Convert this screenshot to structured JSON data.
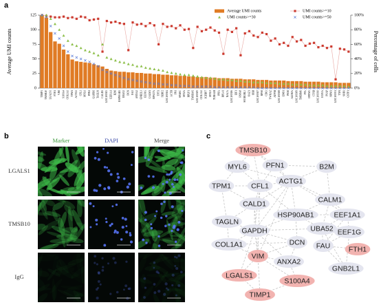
{
  "panel_labels": [
    "a",
    "b",
    "c"
  ],
  "chart_data": {
    "type": "bar",
    "ylabel": "Average UMI counts",
    "y2label": "Percentage of cells",
    "categories": [
      "TIMP1",
      "TMSB10",
      "LGALS1",
      "FTH1",
      "VIM",
      "S100A4",
      "COL1A1",
      "TPM1",
      "ACTG1",
      "CFL1",
      "MYL6",
      "PFN1",
      "GAPDH",
      "TAGLN",
      "CALD1",
      "LOC100383",
      "EEF1A1",
      "B2M",
      "HSP90AB1",
      "UBA52",
      "DCN",
      "FAU",
      "ANXA2",
      "GNB2L1",
      "EEF1G",
      "CALM1",
      "RPS27A",
      "TPT1",
      "SERF2",
      "LOC100384",
      "ACTB",
      "FN1",
      "SPARC",
      "MT2A",
      "RPLP1",
      "TMSB4X",
      "LOC100385",
      "COL3A1",
      "IGFBP7",
      "MYL9",
      "TUBA1B",
      "PPIA",
      "RPL41",
      "NACA",
      "LOC100386",
      "EIF1",
      "HSPA8",
      "SH3BGRL3",
      "OAZ1",
      "UBB",
      "LOC100387",
      "RPS8",
      "CD63",
      "YWHAZ",
      "ATP5B",
      "LOC100388",
      "ENO1",
      "PKM",
      "ALDOA",
      "LOC100389",
      "TMBIM6",
      "FTL",
      "IFITM3",
      "CTSB",
      "LOC100390",
      "H3F3A",
      "PSAP",
      "NPM1",
      "LOC100391",
      "TXN",
      "SOD1",
      "GSTP1"
    ],
    "series": [
      {
        "name": "Average UMI counts",
        "color": "#e07b24",
        "kind": "bar",
        "values": [
          125,
          121,
          96,
          80,
          76,
          66,
          58,
          49,
          46,
          45,
          44,
          43,
          41,
          39,
          37,
          33,
          30,
          29,
          28,
          28,
          27,
          27,
          26,
          26,
          25,
          25,
          24,
          24,
          23,
          23,
          22,
          22,
          21,
          21,
          20,
          20,
          19,
          19,
          19,
          18,
          18,
          17,
          17,
          17,
          16,
          16,
          16,
          15,
          15,
          15,
          14,
          14,
          14,
          13,
          13,
          13,
          13,
          12,
          12,
          12,
          12,
          11,
          11,
          11,
          11,
          10,
          10,
          10,
          10,
          9,
          9,
          9
        ]
      },
      {
        "name": "UMI counts>=10",
        "color": "#cc3b30",
        "kind": "line",
        "marker": "square",
        "axis": "y2",
        "values": [
          100,
          99,
          98,
          97,
          97,
          98,
          96,
          97,
          95,
          98,
          97,
          93,
          94,
          95,
          50,
          92,
          90,
          91,
          89,
          88,
          52,
          90,
          87,
          88,
          85,
          89,
          86,
          60,
          88,
          84,
          85,
          82,
          86,
          80,
          81,
          55,
          84,
          78,
          80,
          83,
          79,
          76,
          47,
          80,
          77,
          82,
          45,
          75,
          78,
          72,
          70,
          76,
          74,
          65,
          68,
          60,
          62,
          58,
          70,
          64,
          66,
          58,
          61,
          62,
          56,
          58,
          55,
          57,
          12,
          54,
          53,
          50
        ]
      },
      {
        "name": "UMI counts>=30",
        "color": "#8dbf4a",
        "kind": "points",
        "marker": "triangle",
        "axis": "y2",
        "values": [
          100,
          100,
          95,
          88,
          80,
          72,
          65,
          60,
          58,
          55,
          52,
          50,
          48,
          45,
          60,
          42,
          40,
          38,
          36,
          35,
          33,
          32,
          30,
          30,
          28,
          27,
          26,
          25,
          24,
          22,
          21,
          20,
          19,
          18,
          18,
          17,
          16,
          15,
          14,
          14,
          13,
          12,
          12,
          11,
          11,
          10,
          10,
          9,
          9,
          8,
          8,
          8,
          7,
          7,
          7,
          6,
          6,
          6,
          5,
          5,
          5,
          5,
          4,
          4,
          4,
          4,
          3,
          3,
          3,
          3,
          3,
          2
        ]
      },
      {
        "name": "UMI counts>=50",
        "color": "#5b7bd5",
        "kind": "points",
        "marker": "x",
        "axis": "y2",
        "values": [
          100,
          97,
          85,
          75,
          68,
          58,
          50,
          44,
          42,
          40,
          38,
          36,
          33,
          30,
          25,
          22,
          20,
          18,
          16,
          14,
          12,
          11,
          10,
          9,
          8,
          7,
          6,
          6,
          5,
          5,
          4,
          4,
          3,
          3,
          3,
          2,
          2,
          2,
          2,
          2,
          1,
          1,
          1,
          1,
          1,
          1,
          1,
          1,
          1,
          1,
          0,
          0,
          0,
          0,
          0,
          0,
          0,
          0,
          0,
          0,
          0,
          0,
          0,
          0,
          0,
          0,
          0,
          0,
          0,
          0,
          0,
          0
        ]
      }
    ],
    "ylim": [
      0,
      125
    ],
    "yticks": [
      0,
      25,
      50,
      75,
      100,
      125
    ],
    "y2lim": [
      0,
      100
    ],
    "y2ticks": [
      {
        "value": 0,
        "label": "0%"
      },
      {
        "value": 20,
        "label": "20%"
      },
      {
        "value": 40,
        "label": "40%"
      },
      {
        "value": 60,
        "label": "60%"
      },
      {
        "value": 80,
        "label": "80%"
      },
      {
        "value": 100,
        "label": "100%"
      }
    ],
    "legend": "upper right"
  },
  "panel_b": {
    "columns": [
      "Marker",
      "DAPI",
      "Merge"
    ],
    "rows": [
      "LGALS1",
      "TMSB10",
      "IgG"
    ]
  },
  "network": {
    "nodes": [
      {
        "label": "TMSB10",
        "highlight": true
      },
      {
        "label": "MYL6",
        "highlight": false
      },
      {
        "label": "PFN1",
        "highlight": false
      },
      {
        "label": "B2M",
        "highlight": false
      },
      {
        "label": "TPM1",
        "highlight": false
      },
      {
        "label": "CFL1",
        "highlight": false
      },
      {
        "label": "ACTG1",
        "highlight": false
      },
      {
        "label": "CALM1",
        "highlight": false
      },
      {
        "label": "CALD1",
        "highlight": false
      },
      {
        "label": "TAGLN",
        "highlight": false
      },
      {
        "label": "HSP90AB1",
        "highlight": false
      },
      {
        "label": "EEF1A1",
        "highlight": false
      },
      {
        "label": "GAPDH",
        "highlight": false
      },
      {
        "label": "UBA52",
        "highlight": false
      },
      {
        "label": "EEF1G",
        "highlight": false
      },
      {
        "label": "COL1A1",
        "highlight": false
      },
      {
        "label": "DCN",
        "highlight": false
      },
      {
        "label": "FAU",
        "highlight": false
      },
      {
        "label": "FTH1",
        "highlight": true
      },
      {
        "label": "VIM",
        "highlight": true
      },
      {
        "label": "ANXA2",
        "highlight": false
      },
      {
        "label": "GNB2L1",
        "highlight": false
      },
      {
        "label": "LGALS1",
        "highlight": true
      },
      {
        "label": "S100A4",
        "highlight": true
      },
      {
        "label": "TIMP1",
        "highlight": true
      }
    ]
  }
}
